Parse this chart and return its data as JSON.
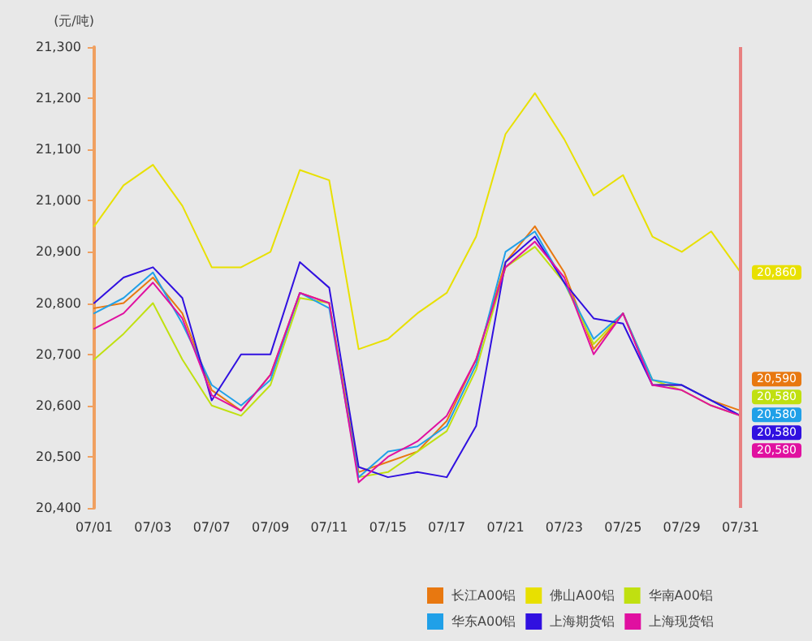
{
  "chart_data": {
    "type": "line",
    "ylabel": "(元/吨)",
    "categories": [
      "07/01",
      null,
      "07/03",
      null,
      "07/07",
      null,
      "07/09",
      null,
      "07/11",
      null,
      "07/15",
      null,
      "07/17",
      null,
      "07/21",
      null,
      "07/23",
      null,
      "07/25",
      null,
      "07/29",
      null,
      "07/31"
    ],
    "ylim": [
      20400,
      21300
    ],
    "yticks": [
      {
        "value": 20400,
        "label": "20,400"
      },
      {
        "value": 20500,
        "label": "20,500"
      },
      {
        "value": 20600,
        "label": "20,600"
      },
      {
        "value": 20700,
        "label": "20,700"
      },
      {
        "value": 20800,
        "label": "20,800"
      },
      {
        "value": 20900,
        "label": "20,900"
      },
      {
        "value": 21000,
        "label": "21,000"
      },
      {
        "value": 21100,
        "label": "21,100"
      },
      {
        "value": 21200,
        "label": "21,200"
      },
      {
        "value": 21300,
        "label": "21,300"
      }
    ],
    "grid": false,
    "legend": "bottom",
    "marker": "none",
    "line_style": "solid",
    "ref_lines": [
      {
        "axis": "x",
        "value": "07/31",
        "color": "#e88080"
      }
    ],
    "series": [
      {
        "name": "长江A00铝",
        "color": "#e87810",
        "values": [
          20790,
          20800,
          20850,
          20780,
          20630,
          20590,
          20660,
          20820,
          20800,
          20470,
          20490,
          20510,
          20570,
          20690,
          20880,
          20950,
          20860,
          20710,
          20780,
          20640,
          20640,
          20610,
          20590
        ],
        "value_labels": [
          null,
          null,
          null,
          null,
          null,
          null,
          null,
          null,
          null,
          null,
          null,
          null,
          null,
          null,
          null,
          null,
          null,
          null,
          null,
          null,
          null,
          null,
          "20,590"
        ]
      },
      {
        "name": "佛山A00铝",
        "color": "#e8e000",
        "values": [
          20950,
          21030,
          21070,
          20990,
          20870,
          20870,
          20900,
          21060,
          21040,
          20710,
          20730,
          20780,
          20820,
          20930,
          21130,
          21210,
          21120,
          21010,
          21050,
          20930,
          20900,
          20940,
          20860
        ],
        "value_labels": [
          null,
          null,
          null,
          null,
          null,
          null,
          null,
          null,
          null,
          null,
          null,
          null,
          null,
          null,
          null,
          null,
          null,
          null,
          null,
          null,
          null,
          null,
          "20,860"
        ]
      },
      {
        "name": "华南A00铝",
        "color": "#c0e010",
        "values": [
          20690,
          20740,
          20800,
          20690,
          20600,
          20580,
          20640,
          20810,
          20800,
          20460,
          20470,
          20510,
          20550,
          20670,
          20870,
          20910,
          20840,
          20720,
          20780,
          20650,
          20630,
          20600,
          20580
        ],
        "value_labels": [
          null,
          null,
          null,
          null,
          null,
          null,
          null,
          null,
          null,
          null,
          null,
          null,
          null,
          null,
          null,
          null,
          null,
          null,
          null,
          null,
          null,
          null,
          "20,580"
        ]
      },
      {
        "name": "华东A00铝",
        "color": "#20a0e8",
        "values": [
          20780,
          20810,
          20860,
          20760,
          20640,
          20600,
          20650,
          20820,
          20790,
          20460,
          20510,
          20520,
          20560,
          20680,
          20900,
          20940,
          20840,
          20730,
          20780,
          20650,
          20640,
          20610,
          20580
        ],
        "value_labels": [
          null,
          null,
          null,
          null,
          null,
          null,
          null,
          null,
          null,
          null,
          null,
          null,
          null,
          null,
          null,
          null,
          null,
          null,
          null,
          null,
          null,
          null,
          "20,580"
        ]
      },
      {
        "name": "上海期货铝",
        "color": "#3010e0",
        "values": [
          20800,
          20850,
          20870,
          20810,
          20610,
          20700,
          20700,
          20880,
          20830,
          20480,
          20460,
          20470,
          20460,
          20560,
          20880,
          20930,
          20840,
          20770,
          20760,
          20640,
          20640,
          20610,
          20580
        ],
        "value_labels": [
          null,
          null,
          null,
          null,
          null,
          null,
          null,
          null,
          null,
          null,
          null,
          null,
          null,
          null,
          null,
          null,
          null,
          null,
          null,
          null,
          null,
          null,
          "20,580"
        ]
      },
      {
        "name": "上海现货铝",
        "color": "#e010a0",
        "values": [
          20750,
          20780,
          20840,
          20770,
          20620,
          20590,
          20660,
          20820,
          20800,
          20450,
          20500,
          20530,
          20580,
          20690,
          20870,
          20920,
          20850,
          20700,
          20780,
          20640,
          20630,
          20600,
          20580
        ],
        "value_labels": [
          null,
          null,
          null,
          null,
          null,
          null,
          null,
          null,
          null,
          null,
          null,
          null,
          null,
          null,
          null,
          null,
          null,
          null,
          null,
          null,
          null,
          null,
          "20,580"
        ]
      }
    ]
  }
}
